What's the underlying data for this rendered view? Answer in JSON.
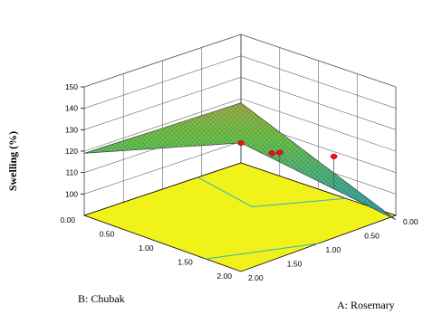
{
  "chart_data": {
    "type": "surface",
    "zlabel": "Swelling (%)",
    "xlabel": "A: Rosemary",
    "ylabel": "B: Chubak",
    "x_ticks": [
      "0.00",
      "0.50",
      "1.00",
      "1.50",
      "2.00"
    ],
    "y_ticks": [
      "0.00",
      "0.50",
      "1.00",
      "1.50",
      "2.00"
    ],
    "z_ticks": [
      "100",
      "110",
      "120",
      "130",
      "140",
      "150"
    ],
    "xlim": [
      0,
      2
    ],
    "ylim": [
      0,
      2
    ],
    "zlim": [
      90,
      150
    ],
    "surface": {
      "corners": [
        {
          "x": 0,
          "y": 0,
          "z": 118
        },
        {
          "x": 2,
          "y": 0,
          "z": 119
        },
        {
          "x": 0,
          "y": 2,
          "z": 88
        },
        {
          "x": 2,
          "y": 2,
          "z": 150
        }
      ]
    },
    "design_points": [
      {
        "x": 2,
        "y": 2,
        "z": 150
      },
      {
        "x": 1.6,
        "y": 2,
        "z": 140
      },
      {
        "x": 1.5,
        "y": 2,
        "z": 139
      },
      {
        "x": 0.8,
        "y": 2,
        "z": 128
      }
    ],
    "colors": {
      "floor": "#f2f21b",
      "contour": "#2bb6c8",
      "points": "#ee1111",
      "low": "#2a6cff",
      "mid": "#6cc24a",
      "high": "#c73a2a"
    }
  }
}
